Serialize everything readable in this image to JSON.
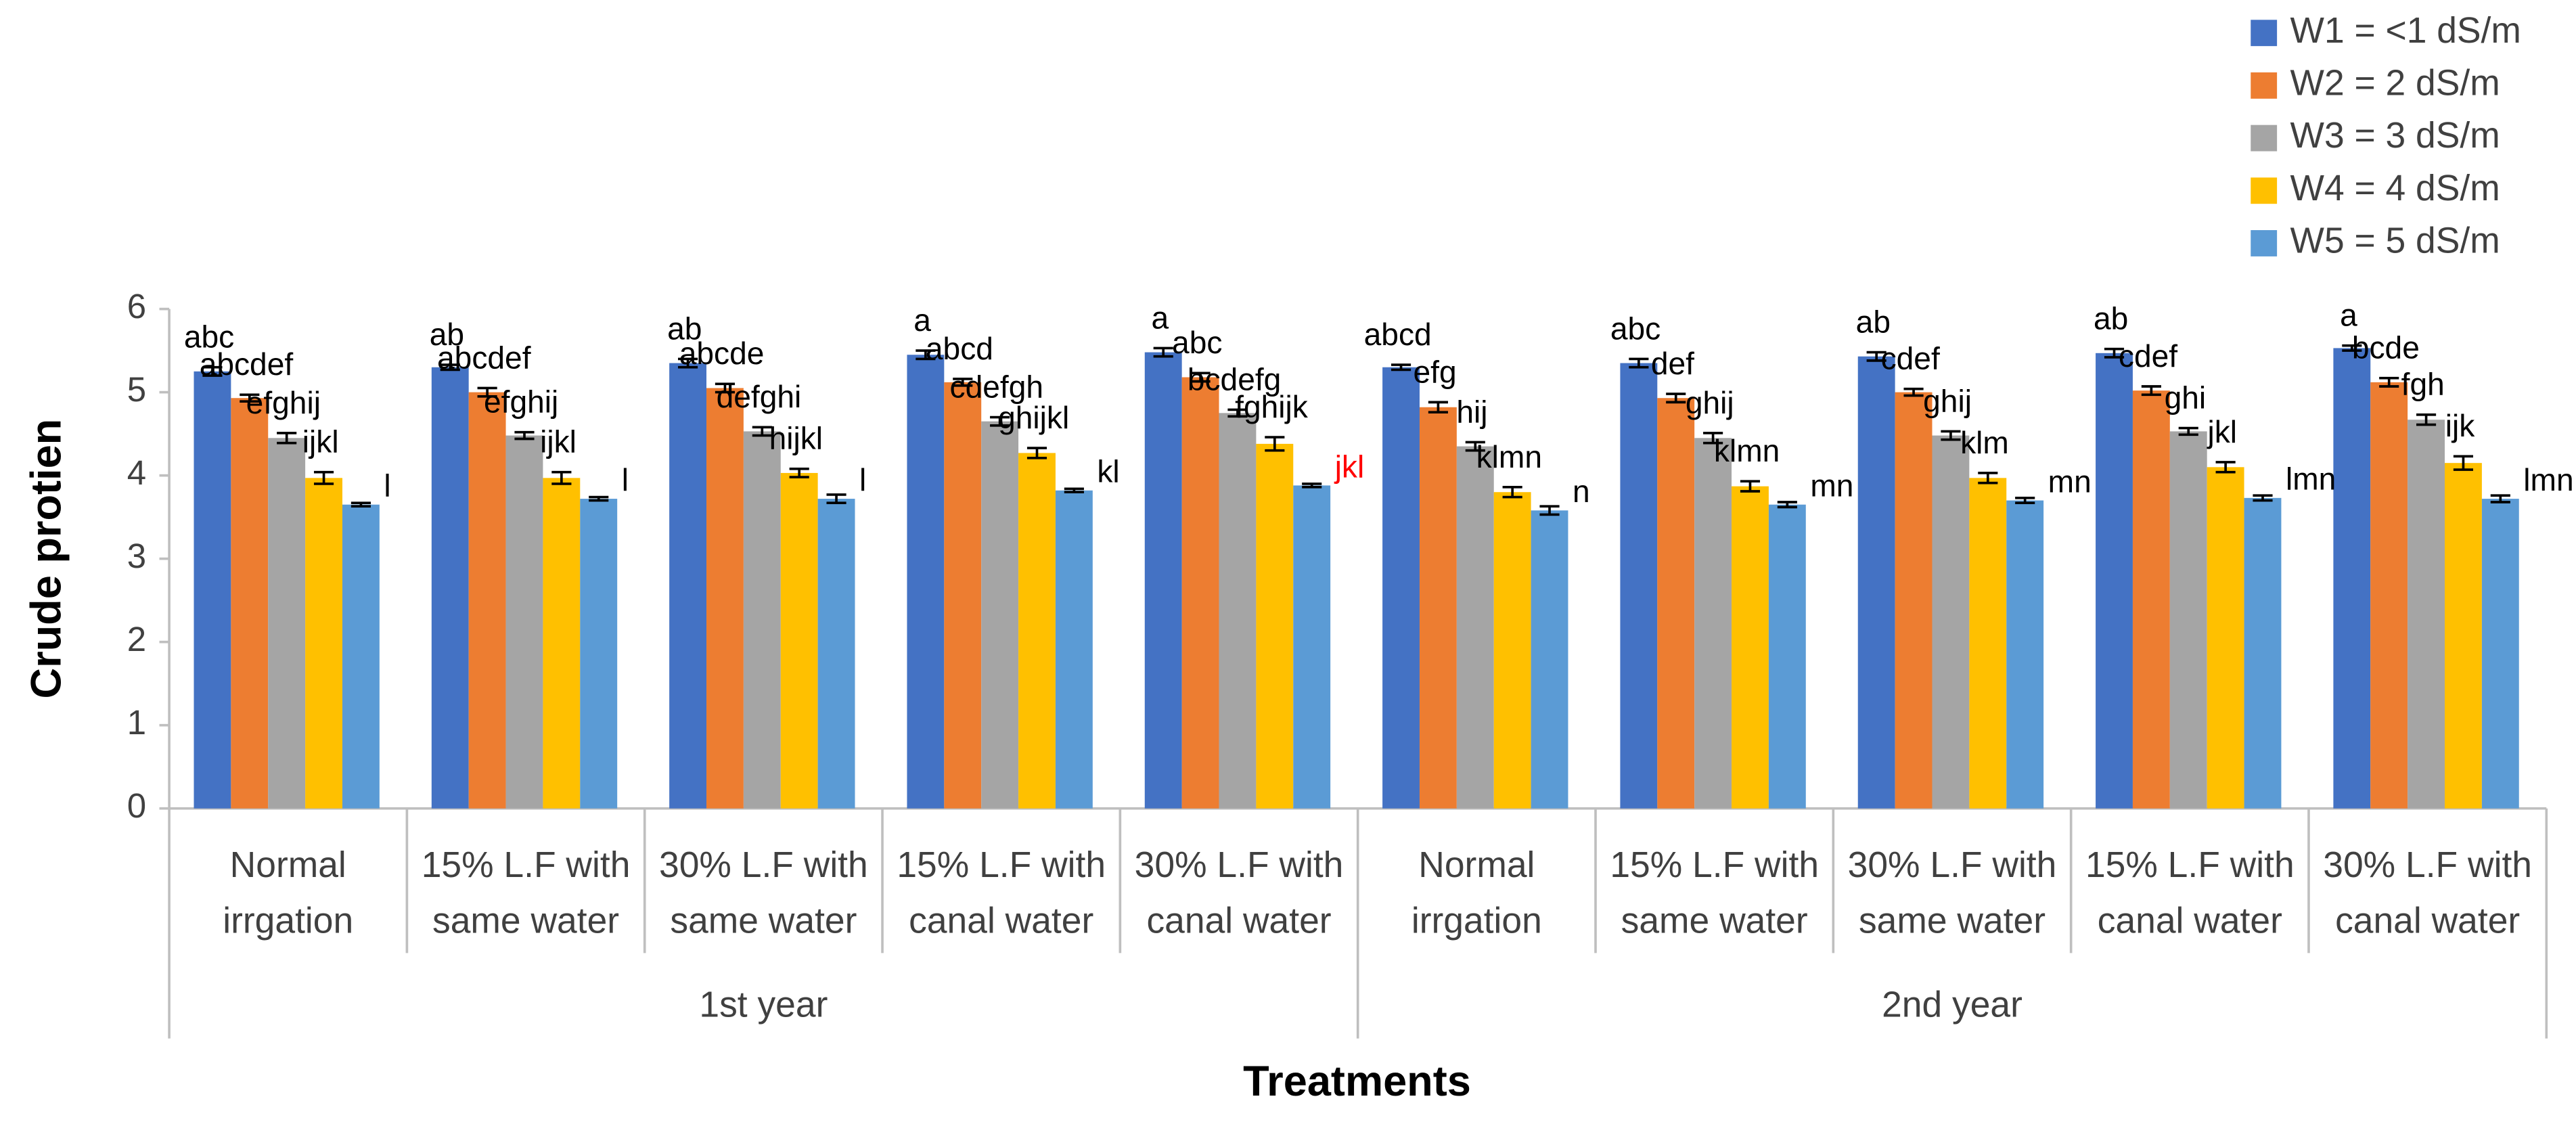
{
  "chart_data": {
    "type": "bar",
    "y_label": "Crude protien",
    "x_label": "Treatments",
    "categories": [
      [
        "Normal",
        "irrgation"
      ],
      [
        "15% L.F with",
        "same water"
      ],
      [
        "30% L.F with",
        "same water"
      ],
      [
        "15% L.F with",
        "canal water"
      ],
      [
        "30% L.F with",
        "canal water"
      ],
      [
        "Normal",
        "irrgation"
      ],
      [
        "15% L.F with",
        "same water"
      ],
      [
        "30% L.F with",
        "same water"
      ],
      [
        "15% L.F with",
        "canal water"
      ],
      [
        "30% L.F with",
        "canal water"
      ]
    ],
    "years": [
      "1st year",
      "2nd year"
    ],
    "ylim": [
      0,
      6
    ],
    "yticks": [
      0,
      1,
      2,
      3,
      4,
      5,
      6
    ],
    "series": [
      {
        "name": "W1 = <1 dS/m",
        "color": "#4472c4",
        "values": [
          5.25,
          5.3,
          5.35,
          5.45,
          5.48,
          5.3,
          5.35,
          5.43,
          5.47,
          5.53
        ],
        "errors": [
          0.05,
          0.03,
          0.05,
          0.05,
          0.05,
          0.03,
          0.05,
          0.05,
          0.05,
          0.03
        ],
        "letters": [
          "abc",
          "ab",
          "ab",
          "a",
          "a",
          "abcd",
          "abc",
          "ab",
          "ab",
          "a"
        ]
      },
      {
        "name": "W2 = 2 dS/m",
        "color": "#ed7d31",
        "values": [
          4.93,
          5.0,
          5.05,
          5.12,
          5.18,
          4.82,
          4.93,
          5.0,
          5.02,
          5.12
        ],
        "errors": [
          0.04,
          0.05,
          0.05,
          0.04,
          0.05,
          0.06,
          0.05,
          0.04,
          0.05,
          0.05
        ],
        "letters": [
          "abcdef",
          "abcdef",
          "abcde",
          "abcd",
          "abc",
          "efg",
          "def",
          "cdef",
          "cdef",
          "bcde"
        ]
      },
      {
        "name": "W3 = 3 dS/m",
        "color": "#a5a5a5",
        "values": [
          4.45,
          4.48,
          4.53,
          4.65,
          4.75,
          4.35,
          4.45,
          4.48,
          4.53,
          4.67
        ],
        "errors": [
          0.06,
          0.04,
          0.05,
          0.05,
          0.04,
          0.05,
          0.06,
          0.05,
          0.04,
          0.06
        ],
        "letters": [
          "efghij",
          "efghij",
          "defghi",
          "cdefgh",
          "bcdefg",
          "hij",
          "ghij",
          "ghij",
          "ghi",
          "fgh"
        ]
      },
      {
        "name": "W4 = 4 dS/m",
        "color": "#ffc000",
        "values": [
          3.97,
          3.97,
          4.03,
          4.27,
          4.38,
          3.8,
          3.87,
          3.97,
          4.1,
          4.15
        ],
        "errors": [
          0.07,
          0.07,
          0.05,
          0.06,
          0.08,
          0.06,
          0.06,
          0.06,
          0.06,
          0.08
        ],
        "letters": [
          "ijkl",
          "ijkl",
          "hijkl",
          "ghijkl",
          "fghijk",
          "klmn",
          "klmn",
          "klm",
          "jkl",
          "ijk"
        ]
      },
      {
        "name": "W5 = 5 dS/m",
        "color": "#5b9bd5",
        "values": [
          3.65,
          3.72,
          3.72,
          3.82,
          3.88,
          3.58,
          3.65,
          3.7,
          3.73,
          3.72
        ],
        "errors": [
          0.02,
          0.02,
          0.05,
          0.02,
          0.02,
          0.05,
          0.03,
          0.03,
          0.03,
          0.04
        ],
        "letters": [
          "l",
          "l",
          "l",
          "kl",
          {
            "text": "jkl",
            "color": "#ff0000"
          },
          "n",
          "mn",
          "mn",
          "lmn",
          "lmn"
        ]
      }
    ]
  }
}
